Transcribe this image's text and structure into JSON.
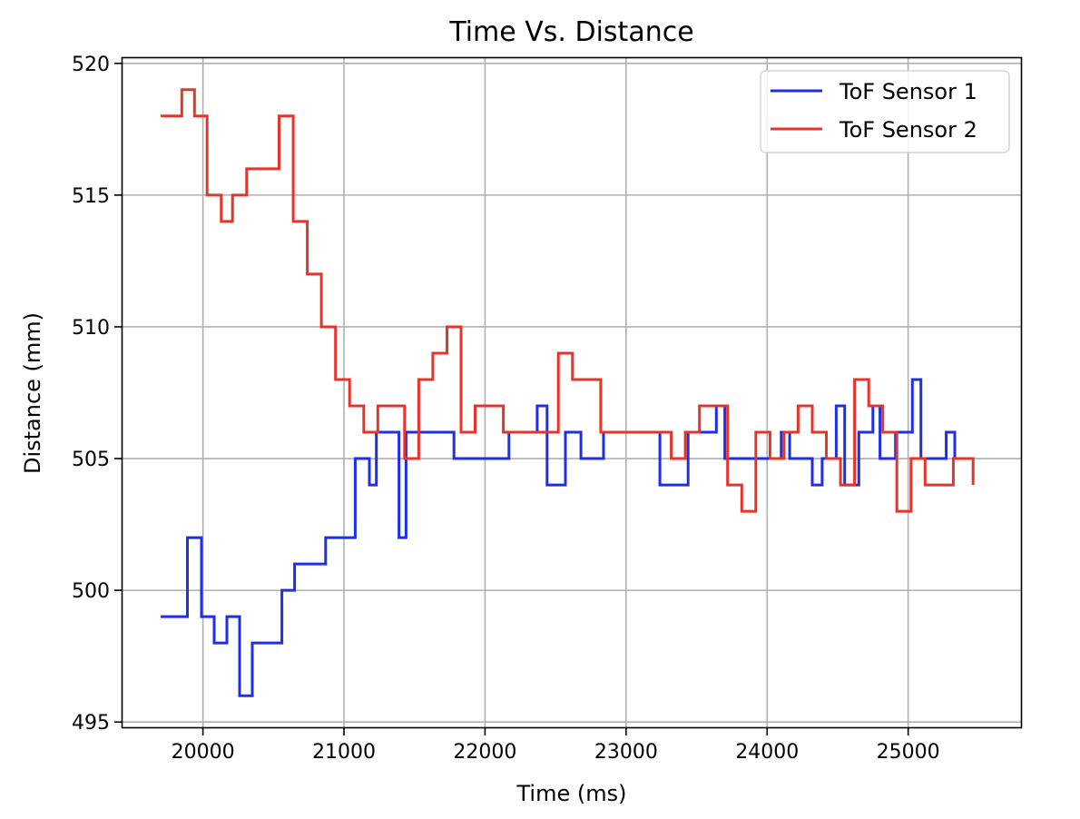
{
  "chart_data": {
    "type": "line",
    "title": "Time Vs. Distance",
    "xlabel": "Time (ms)",
    "ylabel": "Distance (mm)",
    "xlim": [
      19430,
      25800
    ],
    "ylim": [
      494.8,
      520.2
    ],
    "xticks": [
      20000,
      21000,
      22000,
      23000,
      24000,
      25000
    ],
    "yticks": [
      495,
      500,
      505,
      510,
      515,
      520
    ],
    "grid": true,
    "legend_position": "top-right",
    "step": "post",
    "series": [
      {
        "name": "ToF Sensor 1",
        "color": "#1f2fe8",
        "x": [
          19700,
          19800,
          19890,
          19990,
          20030,
          20080,
          20170,
          20260,
          20350,
          20450,
          20560,
          20650,
          20750,
          20870,
          20940,
          21000,
          21040,
          21080,
          21180,
          21230,
          21290,
          21330,
          21390,
          21440,
          21480,
          21580,
          21680,
          21780,
          21880,
          21980,
          22070,
          22170,
          22270,
          22370,
          22440,
          22500,
          22570,
          22620,
          22680,
          22760,
          22840,
          22940,
          23040,
          23140,
          23240,
          23320,
          23390,
          23440,
          23500,
          23560,
          23640,
          23700,
          23760,
          23850,
          23950,
          24040,
          24100,
          24160,
          24230,
          24320,
          24390,
          24440,
          24490,
          24550,
          24600,
          24650,
          24700,
          24750,
          24800,
          24860,
          24910,
          24970,
          25030,
          25090,
          25160,
          25210,
          25270,
          25330,
          25380,
          25460
        ],
        "y": [
          499,
          499,
          502,
          499,
          499,
          498,
          499,
          496,
          498,
          498,
          500,
          501,
          501,
          502,
          502,
          502,
          502,
          505,
          504,
          506,
          506,
          506,
          502,
          506,
          506,
          506,
          506,
          505,
          505,
          505,
          505,
          506,
          506,
          507,
          504,
          504,
          506,
          506,
          505,
          505,
          506,
          506,
          506,
          506,
          504,
          504,
          504,
          506,
          506,
          506,
          507,
          505,
          505,
          505,
          505,
          505,
          506,
          505,
          505,
          504,
          505,
          505,
          507,
          504,
          504,
          506,
          506,
          507,
          505,
          505,
          506,
          506,
          508,
          505,
          505,
          505,
          506,
          505,
          505,
          505
        ]
      },
      {
        "name": "ToF Sensor 2",
        "color": "#e8332a",
        "x": [
          19700,
          19800,
          19850,
          19880,
          19940,
          19980,
          20030,
          20080,
          20130,
          20170,
          20210,
          20260,
          20310,
          20370,
          20430,
          20490,
          20540,
          20580,
          20640,
          20690,
          20740,
          20790,
          20840,
          20890,
          20940,
          20990,
          21040,
          21080,
          21140,
          21190,
          21240,
          21290,
          21330,
          21380,
          21430,
          21480,
          21530,
          21580,
          21630,
          21680,
          21730,
          21780,
          21830,
          21880,
          21930,
          21980,
          22030,
          22080,
          22130,
          22170,
          22220,
          22270,
          22320,
          22370,
          22420,
          22470,
          22520,
          22570,
          22620,
          22670,
          22720,
          22770,
          22820,
          22870,
          22920,
          22970,
          23020,
          23070,
          23120,
          23170,
          23220,
          23270,
          23320,
          23370,
          23420,
          23470,
          23520,
          23570,
          23620,
          23670,
          23720,
          23770,
          23820,
          23870,
          23920,
          23970,
          24020,
          24070,
          24120,
          24170,
          24220,
          24270,
          24320,
          24370,
          24420,
          24470,
          24520,
          24570,
          24620,
          24670,
          24720,
          24770,
          24820,
          24870,
          24920,
          24970,
          25020,
          25070,
          25120,
          25170,
          25220,
          25270,
          25320,
          25370,
          25420,
          25460
        ],
        "y": [
          518,
          518,
          519,
          519,
          518,
          518,
          515,
          515,
          514,
          514,
          515,
          515,
          516,
          516,
          516,
          516,
          518,
          518,
          514,
          514,
          512,
          512,
          510,
          510,
          508,
          508,
          507,
          507,
          506,
          506,
          507,
          507,
          507,
          507,
          505,
          505,
          508,
          508,
          509,
          509,
          510,
          510,
          506,
          506,
          507,
          507,
          507,
          507,
          506,
          506,
          506,
          506,
          506,
          506,
          506,
          506,
          509,
          509,
          508,
          508,
          508,
          508,
          506,
          506,
          506,
          506,
          506,
          506,
          506,
          506,
          506,
          506,
          505,
          505,
          506,
          506,
          507,
          507,
          507,
          507,
          504,
          504,
          503,
          503,
          506,
          506,
          505,
          505,
          506,
          506,
          507,
          507,
          506,
          506,
          505,
          505,
          504,
          504,
          508,
          508,
          507,
          507,
          506,
          506,
          503,
          503,
          505,
          505,
          504,
          504,
          504,
          504,
          505,
          505,
          505,
          504
        ]
      }
    ]
  }
}
